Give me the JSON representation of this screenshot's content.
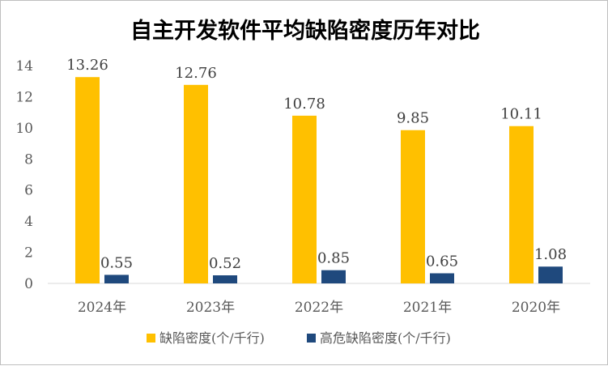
{
  "chart_data": {
    "type": "bar",
    "title": "自主开发软件平均缺陷密度历年对比",
    "categories": [
      "2024年",
      "2023年",
      "2022年",
      "2021年",
      "2020年"
    ],
    "series": [
      {
        "name": "缺陷密度(个/千行)",
        "color": "#ffc000",
        "values": [
          13.26,
          12.76,
          10.78,
          9.85,
          10.11
        ]
      },
      {
        "name": "高危缺陷密度(个/千行)",
        "color": "#1f497d",
        "values": [
          0.55,
          0.52,
          0.85,
          0.65,
          1.08
        ]
      }
    ],
    "ylim": [
      0,
      14
    ],
    "yticks": [
      0,
      2,
      4,
      6,
      8,
      10,
      12,
      14
    ],
    "grid": false,
    "legend_position": "bottom"
  }
}
